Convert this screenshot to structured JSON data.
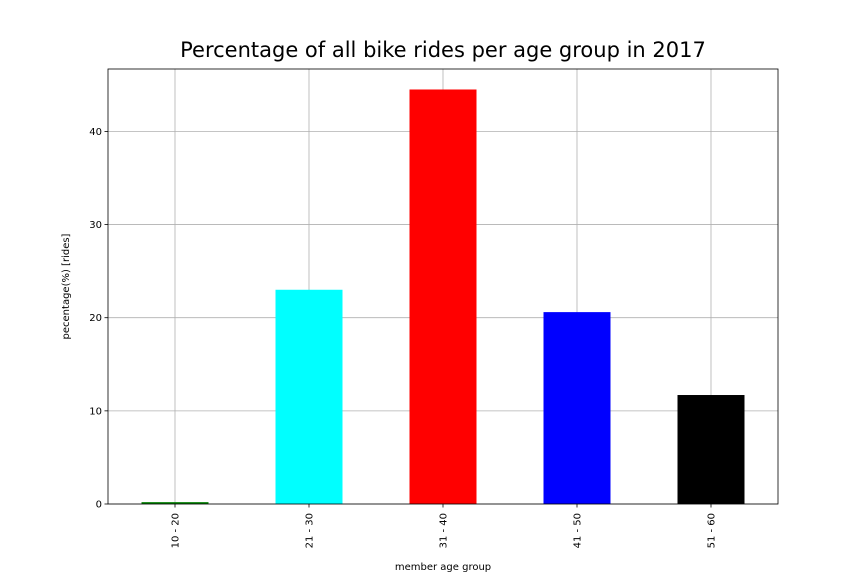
{
  "chart_data": {
    "type": "bar",
    "title": "Percentage of all bike rides per age group in 2017",
    "xlabel": "member age group",
    "ylabel": "pecentage(%) [rides]",
    "categories": [
      "10 - 20",
      "21 - 30",
      "31 - 40",
      "41 - 50",
      "51 - 60"
    ],
    "values": [
      0.2,
      23.0,
      44.5,
      20.6,
      11.7
    ],
    "colors": [
      "#008000",
      "#00ffff",
      "#ff0000",
      "#0000ff",
      "#000000"
    ],
    "ylim": [
      0,
      46.7
    ],
    "yticks": [
      0,
      10,
      20,
      30,
      40
    ],
    "grid": true,
    "legend": "none"
  }
}
